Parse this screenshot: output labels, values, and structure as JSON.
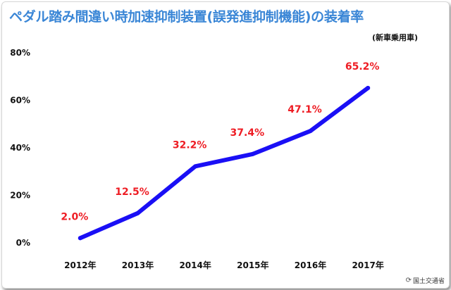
{
  "title": "ペダル踏み間違い時加速抑制装置(誤発進抑制機能)の装着率",
  "subtitle": "(新車乗用車)",
  "credit": {
    "text": "国土交通省",
    "icon": "response-logo-icon"
  },
  "colors": {
    "title": "#3a86d6",
    "line": "#1a0ff5",
    "label": "#ee1d24",
    "axis": "#111111",
    "grid": "#cccccc"
  },
  "chart_data": {
    "type": "line",
    "title": "ペダル踏み間違い時加速抑制装置(誤発進抑制機能)の装着率",
    "categories": [
      "2012年",
      "2013年",
      "2014年",
      "2015年",
      "2016年",
      "2017年"
    ],
    "series": [
      {
        "values": [
          2.0,
          12.5,
          32.2,
          37.4,
          47.1,
          65.2
        ],
        "labels": [
          "2.0%",
          "12.5%",
          "32.2%",
          "37.4%",
          "47.1%",
          "65.2%"
        ]
      }
    ],
    "y_ticks": [
      "80%",
      "60%",
      "40%",
      "20%",
      "0%"
    ],
    "ylim": [
      0,
      80
    ],
    "grid": false,
    "legend": "none"
  }
}
